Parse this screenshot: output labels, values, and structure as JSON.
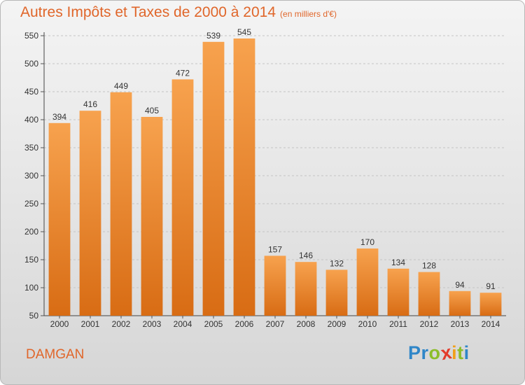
{
  "header": {
    "title": "Autres Impôts et Taxes de 2000 à 2014",
    "subtitle": "(en milliers d'€)"
  },
  "footer": {
    "commune": "DAMGAN",
    "logo": {
      "letters": [
        {
          "char": "P",
          "color": "#2f86c8"
        },
        {
          "char": "r",
          "color": "#2f86c8"
        },
        {
          "char": "o",
          "color": "#8cbd2a"
        },
        {
          "char": "x",
          "color": "#e33a2a"
        },
        {
          "char": "i",
          "color": "#f0a01a"
        },
        {
          "char": "t",
          "color": "#8cbd2a"
        },
        {
          "char": "i",
          "color": "#2f86c8"
        }
      ]
    }
  },
  "colors": {
    "bar_light": "#f7a24e",
    "bar_dark": "#d86c14",
    "accent": "#e0662a"
  },
  "chart_data": {
    "type": "bar",
    "title": "Autres Impôts et Taxes de 2000 à 2014",
    "subtitle": "(en milliers d'€)",
    "xlabel": "",
    "ylabel": "",
    "categories": [
      "2000",
      "2001",
      "2002",
      "2003",
      "2004",
      "2005",
      "2006",
      "2007",
      "2008",
      "2009",
      "2010",
      "2011",
      "2012",
      "2013",
      "2014"
    ],
    "values": [
      394,
      416,
      449,
      405,
      472,
      539,
      545,
      157,
      146,
      132,
      170,
      134,
      128,
      94,
      91
    ],
    "ylim": [
      50,
      550
    ],
    "yticks": [
      50,
      100,
      150,
      200,
      250,
      300,
      350,
      400,
      450,
      500,
      550
    ],
    "grid": true,
    "data_labels": true
  }
}
